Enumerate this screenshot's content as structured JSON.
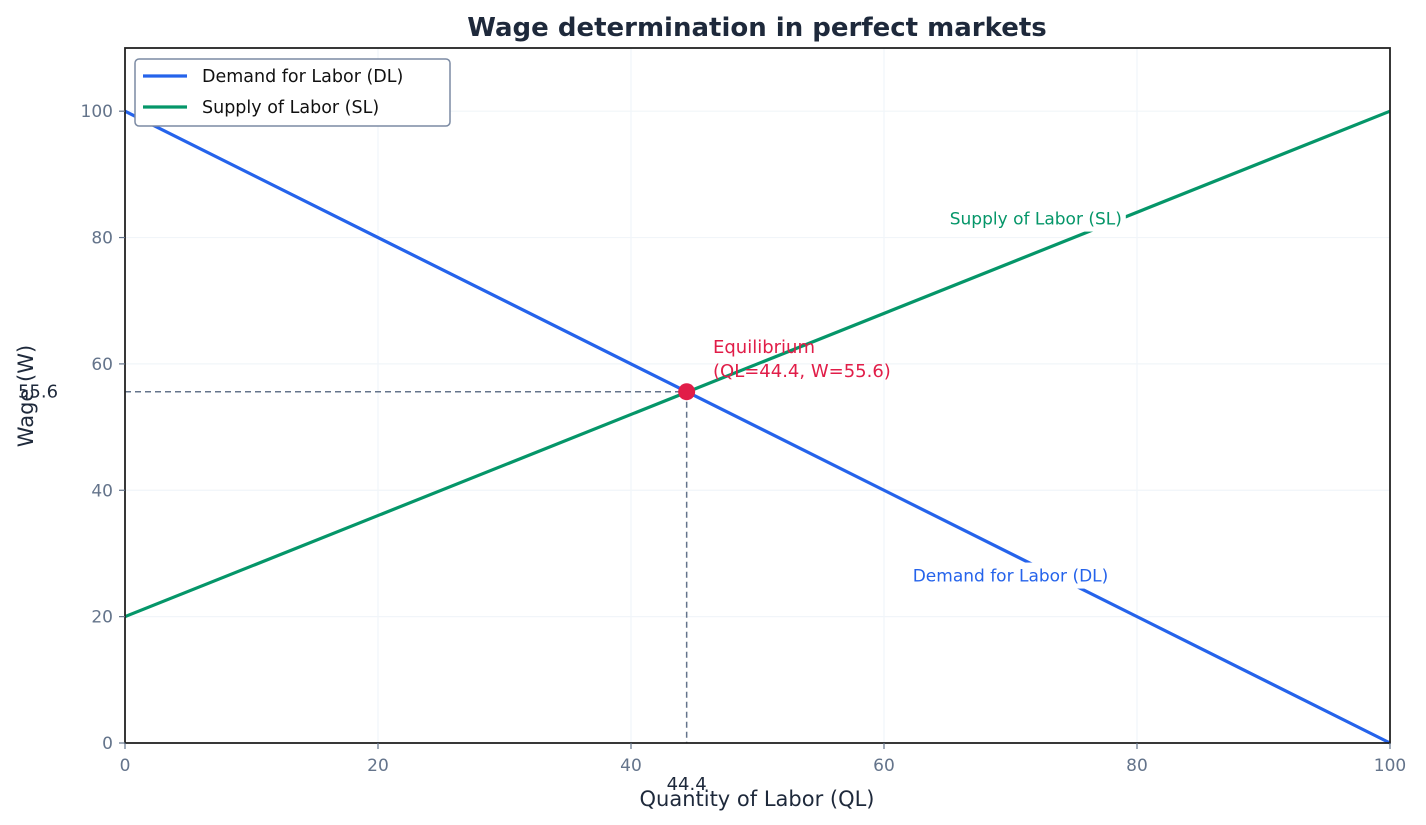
{
  "chart_data": {
    "type": "line",
    "title": "Wage determination in perfect markets",
    "xlabel": "Quantity of Labor (QL)",
    "ylabel": "Wage (W)",
    "xlim": [
      0,
      100
    ],
    "ylim": [
      0,
      110
    ],
    "xticks": [
      0,
      20,
      40,
      60,
      80,
      100
    ],
    "yticks": [
      0,
      20,
      40,
      60,
      80,
      100
    ],
    "grid": true,
    "legend_position": "upper left",
    "series": [
      {
        "name": "Demand for Labor (DL)",
        "color": "#2563eb",
        "x": [
          0,
          100
        ],
        "y": [
          100,
          0
        ]
      },
      {
        "name": "Supply of Labor (SL)",
        "color": "#059669",
        "x": [
          0,
          100
        ],
        "y": [
          20,
          100
        ]
      }
    ],
    "equilibrium": {
      "x": 44.4,
      "y": 55.6,
      "color": "#e11d48",
      "label_line1": "Equilibrium",
      "label_line2": "(QL=44.4, W=55.6)",
      "x_label": "44.4",
      "y_label": "55.6"
    },
    "annotations": [
      {
        "text": "Supply of Labor (SL)",
        "x": 72,
        "y": 83,
        "color": "#059669"
      },
      {
        "text": "Demand for Labor (DL)",
        "x": 70,
        "y": 26.5,
        "color": "#2563eb"
      }
    ]
  },
  "colors": {
    "title": "#1e293b",
    "tick": "#64748b",
    "axis": "#222222",
    "grid": "#f1f5f9",
    "guide": "#64748b",
    "legend_border": "#7b8aa3"
  }
}
